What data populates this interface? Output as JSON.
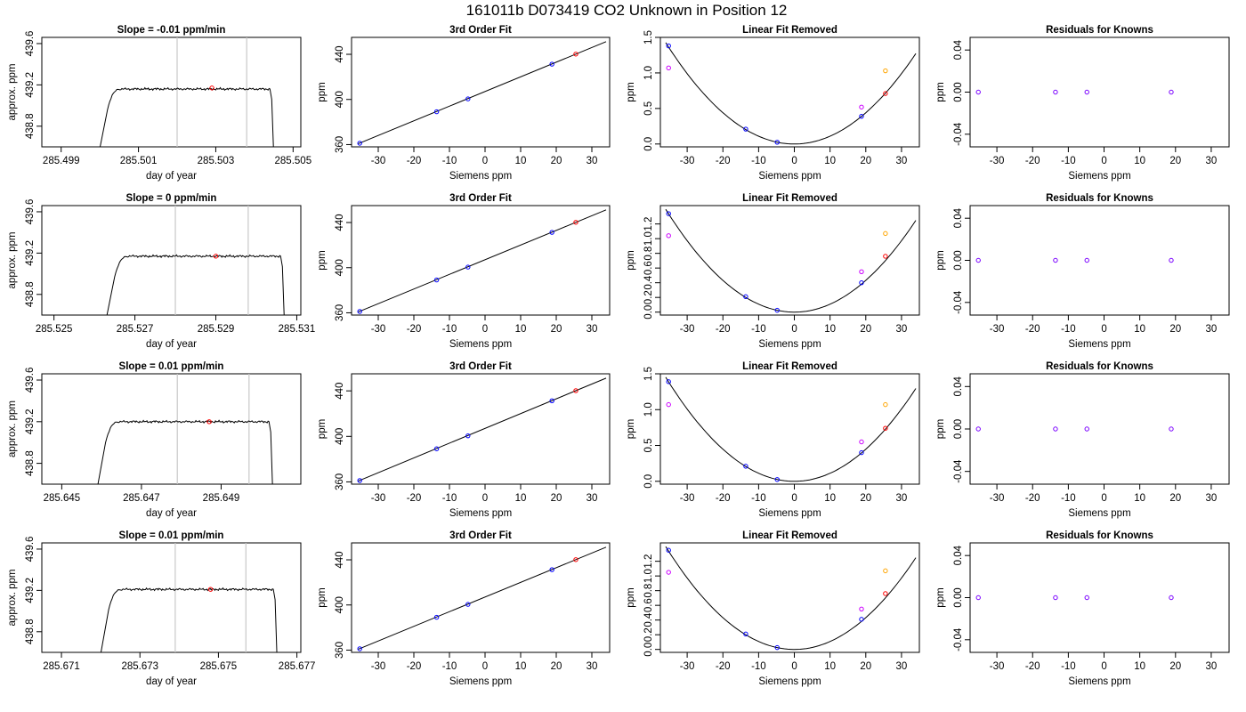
{
  "page_title": "161011b     D073419   CO2 Unknown in Position  12",
  "chart_data": [
    {
      "id": "r1c1",
      "type": "line",
      "title": "Slope =  -0.01  ppm/min",
      "xlabel": "day of year",
      "ylabel": "approx. ppm",
      "xlim": [
        285.4985,
        285.5052
      ],
      "ylim": [
        438.6,
        439.66
      ],
      "xticks": [
        "285.499",
        "285.501",
        "285.503",
        "285.505"
      ],
      "xtick_values": [
        285.499,
        285.501,
        285.503,
        285.505
      ],
      "yticks": [
        "438.8",
        "439.2",
        "439.6"
      ],
      "ytick_values": [
        438.8,
        439.2,
        439.6
      ],
      "vlines": [
        285.502,
        285.5038
      ],
      "trace": {
        "x_start": 285.5,
        "x_rise": 285.5002,
        "x_level": 285.5005,
        "x_end": 285.5044,
        "level": 439.16,
        "base": 438.6
      },
      "mean_point": {
        "x": 285.5029,
        "y": 439.17
      }
    },
    {
      "id": "r1c2",
      "type": "scatter",
      "title": "3rd Order Fit",
      "xlabel": "Siemens ppm",
      "ylabel": "ppm",
      "xlim": [
        -37.5,
        35
      ],
      "ylim": [
        358,
        455
      ],
      "xticks": [
        "-30",
        "-20",
        "-10",
        "0",
        "10",
        "20",
        "30"
      ],
      "xtick_values": [
        -30,
        -20,
        -10,
        0,
        10,
        20,
        30
      ],
      "yticks": [
        "360",
        "400",
        "440"
      ],
      "ytick_values": [
        360,
        400,
        440
      ],
      "fit_line": [
        [
          -35.6,
          360.8
        ],
        [
          34,
          451.2
        ]
      ],
      "points": [
        {
          "x": -35.2,
          "y": 361.2,
          "color": "#0000ff"
        },
        {
          "x": -13.6,
          "y": 389.1,
          "color": "#0000ff"
        },
        {
          "x": -4.8,
          "y": 400.5,
          "color": "#0000ff"
        },
        {
          "x": 18.8,
          "y": 431.3,
          "color": "#0000ff"
        },
        {
          "x": 25.5,
          "y": 440.2,
          "color": "#ff0000"
        }
      ]
    },
    {
      "id": "r1c3",
      "type": "scatter",
      "title": "Linear Fit Removed",
      "xlabel": "Siemens ppm",
      "ylabel": "ppm",
      "xlim": [
        -37.5,
        35
      ],
      "ylim": [
        -0.04,
        1.5
      ],
      "xticks": [
        "-30",
        "-20",
        "-10",
        "0",
        "10",
        "20",
        "30"
      ],
      "xtick_values": [
        -30,
        -20,
        -10,
        0,
        10,
        20,
        30
      ],
      "yticks": [
        "0.0",
        "0.5",
        "1.0",
        "1.5"
      ],
      "ytick_values": [
        0,
        0.5,
        1.0,
        1.5
      ],
      "curve": {
        "coef": 0.0011,
        "from": -36,
        "to": 34
      },
      "points": [
        {
          "x": -35.2,
          "y": 1.38,
          "color": "#0000ff"
        },
        {
          "x": -35.2,
          "y": 1.07,
          "color": "#cc00ff"
        },
        {
          "x": -13.6,
          "y": 0.21,
          "color": "#0000ff"
        },
        {
          "x": -4.8,
          "y": 0.025,
          "color": "#0000ff"
        },
        {
          "x": 18.8,
          "y": 0.39,
          "color": "#0000ff"
        },
        {
          "x": 18.8,
          "y": 0.52,
          "color": "#cc00ff"
        },
        {
          "x": 25.5,
          "y": 1.03,
          "color": "#ffa500"
        },
        {
          "x": 25.5,
          "y": 0.71,
          "color": "#ff0000"
        }
      ]
    },
    {
      "id": "r1c4",
      "type": "scatter",
      "title": "Residuals for Knowns",
      "xlabel": "Siemens ppm",
      "ylabel": "ppm",
      "xlim": [
        -37.5,
        35
      ],
      "ylim": [
        -0.052,
        0.052
      ],
      "xticks": [
        "-30",
        "-20",
        "-10",
        "0",
        "10",
        "20",
        "30"
      ],
      "xtick_values": [
        -30,
        -20,
        -10,
        0,
        10,
        20,
        30
      ],
      "yticks": [
        "-0.04",
        "0.00",
        "0.04"
      ],
      "ytick_values": [
        -0.04,
        0,
        0.04
      ],
      "points": [
        {
          "x": -35.2,
          "y": 0,
          "color": "#7a00ff"
        },
        {
          "x": -13.6,
          "y": 0,
          "color": "#7a00ff"
        },
        {
          "x": -4.8,
          "y": 0,
          "color": "#7a00ff"
        },
        {
          "x": 18.8,
          "y": 0,
          "color": "#7a00ff"
        }
      ]
    },
    {
      "id": "r2c1",
      "type": "line",
      "title": "Slope =  0  ppm/min",
      "xlabel": "day of year",
      "ylabel": "approx. ppm",
      "xlim": [
        285.5247,
        285.5311
      ],
      "ylim": [
        438.6,
        439.66
      ],
      "xticks": [
        "285.525",
        "285.527",
        "285.529",
        "285.531"
      ],
      "xtick_values": [
        285.525,
        285.527,
        285.529,
        285.531
      ],
      "yticks": [
        "438.8",
        "439.2",
        "439.6"
      ],
      "ytick_values": [
        438.8,
        439.2,
        439.6
      ],
      "vlines": [
        285.528,
        285.5298
      ],
      "trace": {
        "x_start": 285.5263,
        "x_rise": 285.5265,
        "x_level": 285.5268,
        "x_end": 285.5306,
        "level": 439.17,
        "base": 438.6
      },
      "mean_point": {
        "x": 285.529,
        "y": 439.17
      }
    },
    {
      "id": "r2c2",
      "type": "scatter",
      "title": "3rd Order Fit",
      "xlabel": "Siemens ppm",
      "ylabel": "ppm",
      "xlim": [
        -37.5,
        35
      ],
      "ylim": [
        358,
        455
      ],
      "xticks": [
        "-30",
        "-20",
        "-10",
        "0",
        "10",
        "20",
        "30"
      ],
      "xtick_values": [
        -30,
        -20,
        -10,
        0,
        10,
        20,
        30
      ],
      "yticks": [
        "360",
        "400",
        "440"
      ],
      "ytick_values": [
        360,
        400,
        440
      ],
      "fit_line": [
        [
          -35.6,
          360.8
        ],
        [
          34,
          451.2
        ]
      ],
      "points": [
        {
          "x": -35.2,
          "y": 361.2,
          "color": "#0000ff"
        },
        {
          "x": -13.6,
          "y": 389.1,
          "color": "#0000ff"
        },
        {
          "x": -4.8,
          "y": 400.5,
          "color": "#0000ff"
        },
        {
          "x": 18.8,
          "y": 431.3,
          "color": "#0000ff"
        },
        {
          "x": 25.5,
          "y": 440.2,
          "color": "#ff0000"
        }
      ]
    },
    {
      "id": "r2c3",
      "type": "scatter",
      "title": "Linear Fit Removed",
      "xlabel": "Siemens ppm",
      "ylabel": "ppm",
      "xlim": [
        -37.5,
        35
      ],
      "ylim": [
        -0.04,
        1.45
      ],
      "xticks": [
        "-30",
        "-20",
        "-10",
        "0",
        "10",
        "20",
        "30"
      ],
      "xtick_values": [
        -30,
        -20,
        -10,
        0,
        10,
        20,
        30
      ],
      "yticks": [
        "0.0",
        "0.2",
        "0.4",
        "0.6",
        "0.8",
        "1.0",
        "1.2"
      ],
      "ytick_values": [
        0,
        0.2,
        0.4,
        0.6,
        0.8,
        1.0,
        1.2
      ],
      "curve": {
        "coef": 0.00108,
        "from": -36,
        "to": 34
      },
      "points": [
        {
          "x": -35.2,
          "y": 1.34,
          "color": "#0000ff"
        },
        {
          "x": -35.2,
          "y": 1.04,
          "color": "#cc00ff"
        },
        {
          "x": -13.6,
          "y": 0.21,
          "color": "#0000ff"
        },
        {
          "x": -4.8,
          "y": 0.025,
          "color": "#0000ff"
        },
        {
          "x": 18.8,
          "y": 0.4,
          "color": "#0000ff"
        },
        {
          "x": 18.8,
          "y": 0.55,
          "color": "#cc00ff"
        },
        {
          "x": 25.5,
          "y": 1.07,
          "color": "#ffa500"
        },
        {
          "x": 25.5,
          "y": 0.76,
          "color": "#ff0000"
        }
      ]
    },
    {
      "id": "r2c4",
      "type": "scatter",
      "title": "Residuals for Knowns",
      "xlabel": "Siemens ppm",
      "ylabel": "ppm",
      "xlim": [
        -37.5,
        35
      ],
      "ylim": [
        -0.052,
        0.052
      ],
      "xticks": [
        "-30",
        "-20",
        "-10",
        "0",
        "10",
        "20",
        "30"
      ],
      "xtick_values": [
        -30,
        -20,
        -10,
        0,
        10,
        20,
        30
      ],
      "yticks": [
        "-0.04",
        "0.00",
        "0.04"
      ],
      "ytick_values": [
        -0.04,
        0,
        0.04
      ],
      "points": [
        {
          "x": -35.2,
          "y": 0,
          "color": "#7a00ff"
        },
        {
          "x": -13.6,
          "y": 0,
          "color": "#7a00ff"
        },
        {
          "x": -4.8,
          "y": 0,
          "color": "#7a00ff"
        },
        {
          "x": 18.8,
          "y": 0,
          "color": "#7a00ff"
        }
      ]
    },
    {
      "id": "r3c1",
      "type": "line",
      "title": "Slope =  0.01  ppm/min",
      "xlabel": "day of year",
      "ylabel": "approx. ppm",
      "xlim": [
        285.6445,
        285.651
      ],
      "ylim": [
        438.6,
        439.66
      ],
      "xticks": [
        "285.645",
        "285.647",
        "285.649"
      ],
      "xtick_values": [
        285.645,
        285.647,
        285.649
      ],
      "yticks": [
        "438.8",
        "439.2",
        "439.6"
      ],
      "ytick_values": [
        438.8,
        439.2,
        439.6
      ],
      "vlines": [
        285.6479,
        285.6497
      ],
      "trace": {
        "x_start": 285.6459,
        "x_rise": 285.6461,
        "x_level": 285.6464,
        "x_end": 285.6502,
        "level": 439.2,
        "base": 438.6
      },
      "mean_point": {
        "x": 285.6487,
        "y": 439.2
      }
    },
    {
      "id": "r3c2",
      "type": "scatter",
      "title": "3rd Order Fit",
      "xlabel": "Siemens ppm",
      "ylabel": "ppm",
      "xlim": [
        -37.5,
        35
      ],
      "ylim": [
        358,
        455
      ],
      "xticks": [
        "-30",
        "-20",
        "-10",
        "0",
        "10",
        "20",
        "30"
      ],
      "xtick_values": [
        -30,
        -20,
        -10,
        0,
        10,
        20,
        30
      ],
      "yticks": [
        "360",
        "400",
        "440"
      ],
      "ytick_values": [
        360,
        400,
        440
      ],
      "fit_line": [
        [
          -35.6,
          360.8
        ],
        [
          34,
          451.2
        ]
      ],
      "points": [
        {
          "x": -35.2,
          "y": 361.2,
          "color": "#0000ff"
        },
        {
          "x": -13.6,
          "y": 389.1,
          "color": "#0000ff"
        },
        {
          "x": -4.8,
          "y": 400.5,
          "color": "#0000ff"
        },
        {
          "x": 18.8,
          "y": 431.3,
          "color": "#0000ff"
        },
        {
          "x": 25.5,
          "y": 440.2,
          "color": "#ff0000"
        }
      ]
    },
    {
      "id": "r3c3",
      "type": "scatter",
      "title": "Linear Fit Removed",
      "xlabel": "Siemens ppm",
      "ylabel": "ppm",
      "xlim": [
        -37.5,
        35
      ],
      "ylim": [
        -0.04,
        1.5
      ],
      "xticks": [
        "-30",
        "-20",
        "-10",
        "0",
        "10",
        "20",
        "30"
      ],
      "xtick_values": [
        -30,
        -20,
        -10,
        0,
        10,
        20,
        30
      ],
      "yticks": [
        "0.0",
        "0.5",
        "1.0",
        "1.5"
      ],
      "ytick_values": [
        0,
        0.5,
        1.0,
        1.5
      ],
      "curve": {
        "coef": 0.00112,
        "from": -36,
        "to": 34
      },
      "points": [
        {
          "x": -35.2,
          "y": 1.39,
          "color": "#0000ff"
        },
        {
          "x": -35.2,
          "y": 1.07,
          "color": "#cc00ff"
        },
        {
          "x": -13.6,
          "y": 0.21,
          "color": "#0000ff"
        },
        {
          "x": -4.8,
          "y": 0.025,
          "color": "#0000ff"
        },
        {
          "x": 18.8,
          "y": 0.4,
          "color": "#0000ff"
        },
        {
          "x": 18.8,
          "y": 0.55,
          "color": "#cc00ff"
        },
        {
          "x": 25.5,
          "y": 1.07,
          "color": "#ffa500"
        },
        {
          "x": 25.5,
          "y": 0.74,
          "color": "#ff0000"
        }
      ]
    },
    {
      "id": "r3c4",
      "type": "scatter",
      "title": "Residuals for Knowns",
      "xlabel": "Siemens ppm",
      "ylabel": "ppm",
      "xlim": [
        -37.5,
        35
      ],
      "ylim": [
        -0.052,
        0.052
      ],
      "xticks": [
        "-30",
        "-20",
        "-10",
        "0",
        "10",
        "20",
        "30"
      ],
      "xtick_values": [
        -30,
        -20,
        -10,
        0,
        10,
        20,
        30
      ],
      "yticks": [
        "-0.04",
        "0.00",
        "0.04"
      ],
      "ytick_values": [
        -0.04,
        0,
        0.04
      ],
      "points": [
        {
          "x": -35.2,
          "y": 0,
          "color": "#7a00ff"
        },
        {
          "x": -13.6,
          "y": 0,
          "color": "#7a00ff"
        },
        {
          "x": -4.8,
          "y": 0,
          "color": "#7a00ff"
        },
        {
          "x": 18.8,
          "y": 0,
          "color": "#7a00ff"
        }
      ]
    },
    {
      "id": "r4c1",
      "type": "line",
      "title": "Slope =  0.01  ppm/min",
      "xlabel": "day of year",
      "ylabel": "approx. ppm",
      "xlim": [
        285.6705,
        285.6771
      ],
      "ylim": [
        438.6,
        439.66
      ],
      "xticks": [
        "285.671",
        "285.673",
        "285.675",
        "285.677"
      ],
      "xtick_values": [
        285.671,
        285.673,
        285.675,
        285.677
      ],
      "yticks": [
        "438.8",
        "439.2",
        "439.6"
      ],
      "ytick_values": [
        438.8,
        439.2,
        439.6
      ],
      "vlines": [
        285.6739,
        285.6757
      ],
      "trace": {
        "x_start": 285.672,
        "x_rise": 285.6722,
        "x_level": 285.6725,
        "x_end": 285.6764,
        "level": 439.21,
        "base": 438.6
      },
      "mean_point": {
        "x": 285.6748,
        "y": 439.21
      }
    },
    {
      "id": "r4c2",
      "type": "scatter",
      "title": "3rd Order Fit",
      "xlabel": "Siemens ppm",
      "ylabel": "ppm",
      "xlim": [
        -37.5,
        35
      ],
      "ylim": [
        358,
        455
      ],
      "xticks": [
        "-30",
        "-20",
        "-10",
        "0",
        "10",
        "20",
        "30"
      ],
      "xtick_values": [
        -30,
        -20,
        -10,
        0,
        10,
        20,
        30
      ],
      "yticks": [
        "360",
        "400",
        "440"
      ],
      "ytick_values": [
        360,
        400,
        440
      ],
      "fit_line": [
        [
          -35.6,
          360.8
        ],
        [
          34,
          451.2
        ]
      ],
      "points": [
        {
          "x": -35.2,
          "y": 361.2,
          "color": "#0000ff"
        },
        {
          "x": -13.6,
          "y": 389.1,
          "color": "#0000ff"
        },
        {
          "x": -4.8,
          "y": 400.5,
          "color": "#0000ff"
        },
        {
          "x": 18.8,
          "y": 431.3,
          "color": "#0000ff"
        },
        {
          "x": 25.5,
          "y": 440.2,
          "color": "#ff0000"
        }
      ]
    },
    {
      "id": "r4c3",
      "type": "scatter",
      "title": "Linear Fit Removed",
      "xlabel": "Siemens ppm",
      "ylabel": "ppm",
      "xlim": [
        -37.5,
        35
      ],
      "ylim": [
        -0.04,
        1.45
      ],
      "xticks": [
        "-30",
        "-20",
        "-10",
        "0",
        "10",
        "20",
        "30"
      ],
      "xtick_values": [
        -30,
        -20,
        -10,
        0,
        10,
        20,
        30
      ],
      "yticks": [
        "0.0",
        "0.2",
        "0.4",
        "0.6",
        "0.8",
        "1.0",
        "1.2"
      ],
      "ytick_values": [
        0,
        0.2,
        0.4,
        0.6,
        0.8,
        1.0,
        1.2
      ],
      "curve": {
        "coef": 0.00108,
        "from": -36,
        "to": 34
      },
      "points": [
        {
          "x": -35.2,
          "y": 1.35,
          "color": "#0000ff"
        },
        {
          "x": -35.2,
          "y": 1.05,
          "color": "#cc00ff"
        },
        {
          "x": -13.6,
          "y": 0.21,
          "color": "#0000ff"
        },
        {
          "x": -4.8,
          "y": 0.025,
          "color": "#0000ff"
        },
        {
          "x": 18.8,
          "y": 0.41,
          "color": "#0000ff"
        },
        {
          "x": 18.8,
          "y": 0.55,
          "color": "#cc00ff"
        },
        {
          "x": 25.5,
          "y": 1.07,
          "color": "#ffa500"
        },
        {
          "x": 25.5,
          "y": 0.76,
          "color": "#ff0000"
        }
      ]
    },
    {
      "id": "r4c4",
      "type": "scatter",
      "title": "Residuals for Knowns",
      "xlabel": "Siemens ppm",
      "ylabel": "ppm",
      "xlim": [
        -37.5,
        35
      ],
      "ylim": [
        -0.052,
        0.052
      ],
      "xticks": [
        "-30",
        "-20",
        "-10",
        "0",
        "10",
        "20",
        "30"
      ],
      "xtick_values": [
        -30,
        -20,
        -10,
        0,
        10,
        20,
        30
      ],
      "yticks": [
        "-0.04",
        "0.00",
        "0.04"
      ],
      "ytick_values": [
        -0.04,
        0,
        0.04
      ],
      "points": [
        {
          "x": -35.2,
          "y": 0,
          "color": "#7a00ff"
        },
        {
          "x": -13.6,
          "y": 0,
          "color": "#7a00ff"
        },
        {
          "x": -4.8,
          "y": 0,
          "color": "#7a00ff"
        },
        {
          "x": 18.8,
          "y": 0,
          "color": "#7a00ff"
        }
      ]
    }
  ]
}
